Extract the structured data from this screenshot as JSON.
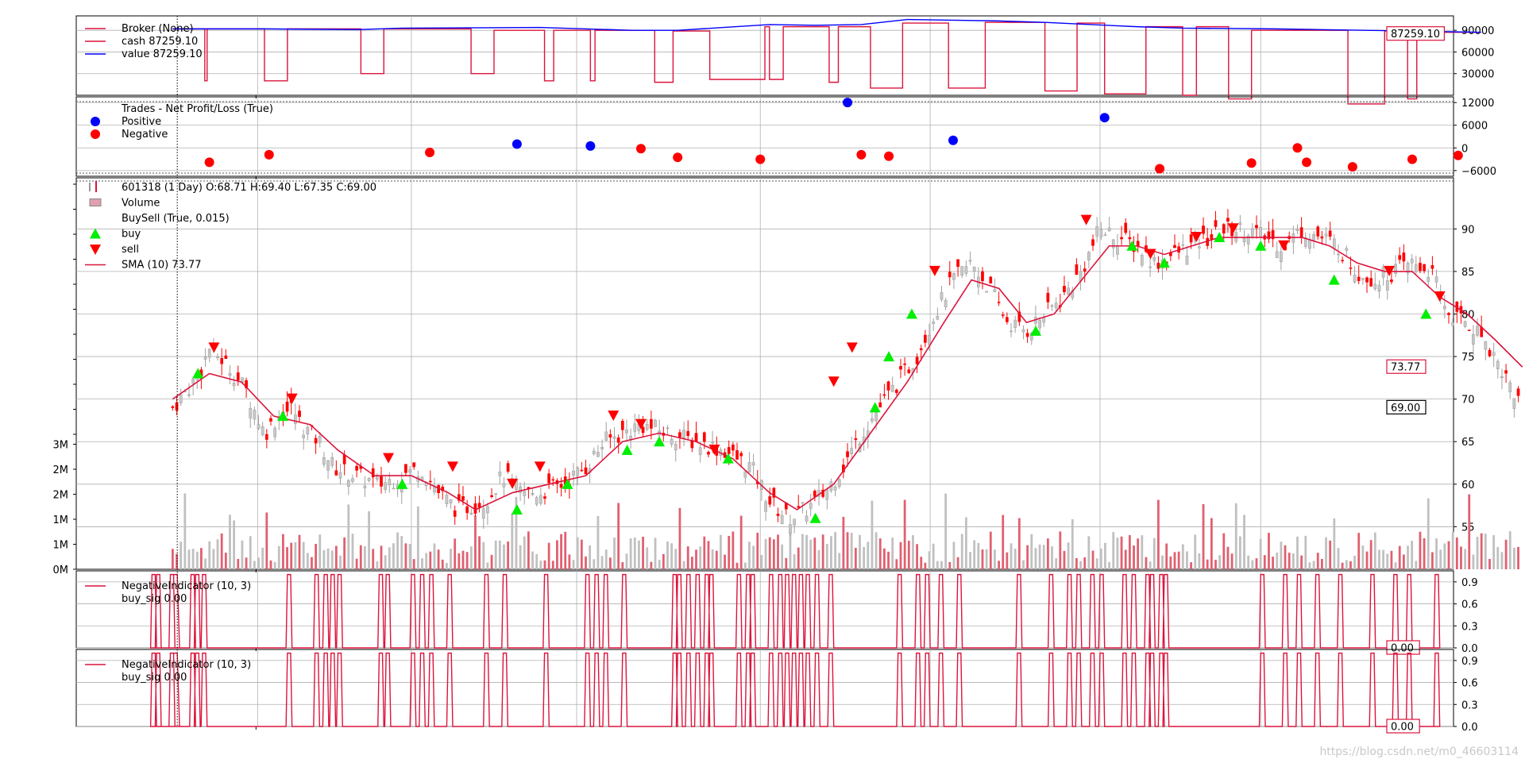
{
  "watermark": "https://blog.csdn.net/m0_46603114",
  "colors": {
    "red": "#dc143c",
    "blue": "#0000ff",
    "buy": "#00ee00",
    "sell": "#ff0000",
    "grid": "#b0b0b0",
    "up_bar": "#c8c8c8",
    "down_bar": "#ff0000",
    "vol_up": "#c0c0c0",
    "vol_down": "#e06070"
  },
  "chart_data": [
    {
      "panel": "broker",
      "type": "line",
      "legend": [
        {
          "label": "Broker (None)",
          "color": "#dc143c",
          "kind": "title"
        },
        {
          "label": "cash 87259.10",
          "color": "#dc143c",
          "kind": "line"
        },
        {
          "label": "value 87259.10",
          "color": "#0000ff",
          "kind": "line"
        }
      ],
      "y_ticks": [
        30000,
        60000,
        90000
      ],
      "ylim": [
        0,
        110000
      ],
      "last_label": "87259.10",
      "cash_segments": [
        [
          0,
          0.7,
          92000
        ],
        [
          0.7,
          0.75,
          20000
        ],
        [
          0.75,
          2.0,
          92000
        ],
        [
          2.0,
          2.5,
          20000
        ],
        [
          2.5,
          4.1,
          92000
        ],
        [
          4.1,
          4.6,
          30000
        ],
        [
          4.6,
          6.5,
          92000
        ],
        [
          6.5,
          7.0,
          30000
        ],
        [
          7.0,
          8.1,
          90000
        ],
        [
          8.1,
          8.3,
          20000
        ],
        [
          8.3,
          9.1,
          90000
        ],
        [
          9.1,
          9.2,
          20000
        ],
        [
          9.2,
          10.5,
          90000
        ],
        [
          10.5,
          10.9,
          18000
        ],
        [
          10.9,
          11.7,
          89000
        ],
        [
          11.7,
          12.9,
          22000
        ],
        [
          12.9,
          13.0,
          95000
        ],
        [
          13.0,
          13.3,
          22000
        ],
        [
          13.3,
          14.3,
          95000
        ],
        [
          14.3,
          14.5,
          18000
        ],
        [
          14.3,
          14.5,
          18000
        ],
        [
          14.5,
          15.2,
          95000
        ],
        [
          15.2,
          15.9,
          10000
        ],
        [
          15.9,
          16.9,
          100000
        ],
        [
          16.9,
          17.7,
          10000
        ],
        [
          17.7,
          19.0,
          101000
        ],
        [
          19.0,
          19.7,
          6000
        ],
        [
          19.7,
          20.3,
          100000
        ],
        [
          20.3,
          21.2,
          2000
        ],
        [
          21.2,
          22.0,
          95000
        ],
        [
          22.0,
          22.3,
          0
        ],
        [
          22.3,
          23.0,
          95000
        ],
        [
          23.0,
          23.5,
          -5000
        ],
        [
          23.5,
          25.6,
          90000
        ],
        [
          25.6,
          26.4,
          -12000
        ],
        [
          26.4,
          26.9,
          89000
        ],
        [
          26.9,
          27.1,
          -5000
        ],
        [
          27.1,
          28.5,
          87259
        ]
      ],
      "value_points": [
        [
          0,
          92000
        ],
        [
          2,
          92000
        ],
        [
          4,
          91000
        ],
        [
          5,
          93000
        ],
        [
          8,
          94000
        ],
        [
          10,
          90000
        ],
        [
          11,
          90000
        ],
        [
          12,
          94000
        ],
        [
          13,
          98000
        ],
        [
          14,
          97000
        ],
        [
          15,
          98000
        ],
        [
          16,
          105000
        ],
        [
          17,
          104000
        ],
        [
          18,
          103000
        ],
        [
          19,
          101000
        ],
        [
          20,
          98000
        ],
        [
          21,
          95000
        ],
        [
          22,
          93000
        ],
        [
          24,
          92000
        ],
        [
          25,
          91000
        ],
        [
          26,
          90000
        ],
        [
          27,
          89000
        ],
        [
          28.5,
          87259
        ]
      ]
    },
    {
      "panel": "trades",
      "type": "scatter",
      "legend": [
        {
          "label": "Trades - Net Profit/Loss (True)",
          "color": "#000000",
          "kind": "title"
        },
        {
          "label": "Positive",
          "color": "#0000ff",
          "kind": "dot"
        },
        {
          "label": "Negative",
          "color": "#ff0000",
          "kind": "dot"
        }
      ],
      "y_ticks": [
        -6000,
        0,
        6000,
        12000
      ],
      "ylim": [
        -7500,
        13500
      ],
      "positive": [
        [
          7.5,
          1000
        ],
        [
          9.1,
          500
        ],
        [
          14.7,
          12000
        ],
        [
          17.0,
          2000
        ],
        [
          20.3,
          8000
        ]
      ],
      "negative": [
        [
          0.8,
          -3800
        ],
        [
          2.1,
          -1800
        ],
        [
          5.6,
          -1200
        ],
        [
          10.2,
          -200
        ],
        [
          11.0,
          -2500
        ],
        [
          12.8,
          -3000
        ],
        [
          15.0,
          -1800
        ],
        [
          15.6,
          -2200
        ],
        [
          21.5,
          -5500
        ],
        [
          23.5,
          -4000
        ],
        [
          24.5,
          0
        ],
        [
          24.7,
          -3800
        ],
        [
          25.7,
          -5000
        ],
        [
          27.0,
          -3000
        ],
        [
          28.0,
          -2000
        ]
      ]
    },
    {
      "panel": "price",
      "type": "ohlc",
      "legend": [
        {
          "label": "601318 (1 Day) O:68.71 H:69.40 L:67.35 C:69.00",
          "color": "#dc143c",
          "kind": "ohlc"
        },
        {
          "label": "Volume",
          "color": "#e0a0b0",
          "kind": "box"
        },
        {
          "label": "BuySell (True, 0.015)",
          "color": "#000000",
          "kind": "title"
        },
        {
          "label": "buy",
          "color": "#00ee00",
          "kind": "up"
        },
        {
          "label": "sell",
          "color": "#ff0000",
          "kind": "down"
        },
        {
          "label": "SMA (10) 73.77",
          "color": "#dc143c",
          "kind": "line"
        }
      ],
      "y_ticks": [
        55,
        60,
        65,
        70,
        75,
        80,
        85,
        90
      ],
      "ylim": [
        50,
        96
      ],
      "vol_ticks": [
        "0M",
        "1M",
        "1M",
        "2M",
        "2M",
        "3M"
      ],
      "last_close_label": "69.00",
      "sma_label": "73.77",
      "close_path": [
        [
          0,
          69
        ],
        [
          0.6,
          73
        ],
        [
          0.8,
          76
        ],
        [
          1.2,
          74
        ],
        [
          1.6,
          71
        ],
        [
          2.0,
          66
        ],
        [
          2.3,
          68
        ],
        [
          2.6,
          69
        ],
        [
          2.8,
          67
        ],
        [
          3.2,
          65
        ],
        [
          3.5,
          62
        ],
        [
          4.0,
          61
        ],
        [
          4.5,
          60
        ],
        [
          5.0,
          61
        ],
        [
          5.4,
          62
        ],
        [
          5.8,
          59
        ],
        [
          6.2,
          57
        ],
        [
          6.8,
          58
        ],
        [
          7.2,
          61
        ],
        [
          7.6,
          59
        ],
        [
          8.0,
          59
        ],
        [
          8.5,
          60
        ],
        [
          9.0,
          62
        ],
        [
          9.4,
          65
        ],
        [
          9.8,
          66
        ],
        [
          10.2,
          67
        ],
        [
          10.8,
          66
        ],
        [
          11.4,
          65
        ],
        [
          12.0,
          64
        ],
        [
          12.6,
          62
        ],
        [
          13.0,
          58
        ],
        [
          13.4,
          56
        ],
        [
          13.8,
          57
        ],
        [
          14.2,
          59
        ],
        [
          14.6,
          62
        ],
        [
          15.0,
          66
        ],
        [
          15.4,
          69
        ],
        [
          15.8,
          72
        ],
        [
          16.2,
          75
        ],
        [
          16.6,
          80
        ],
        [
          17.0,
          84
        ],
        [
          17.4,
          86
        ],
        [
          17.8,
          83
        ],
        [
          18.2,
          79
        ],
        [
          18.6,
          78
        ],
        [
          19.0,
          80
        ],
        [
          19.4,
          82
        ],
        [
          19.8,
          85
        ],
        [
          20.2,
          90
        ],
        [
          20.6,
          89
        ],
        [
          21.0,
          88
        ],
        [
          21.4,
          86
        ],
        [
          21.8,
          87
        ],
        [
          22.2,
          88
        ],
        [
          22.6,
          89
        ],
        [
          23.0,
          90
        ],
        [
          23.4,
          90
        ],
        [
          23.8,
          89
        ],
        [
          24.2,
          88
        ],
        [
          24.6,
          90
        ],
        [
          25.0,
          89
        ],
        [
          25.4,
          88
        ],
        [
          25.8,
          85
        ],
        [
          26.2,
          84
        ],
        [
          26.6,
          85
        ],
        [
          27.0,
          86
        ],
        [
          27.4,
          85
        ],
        [
          27.8,
          80
        ],
        [
          28.2,
          79
        ],
        [
          28.6,
          77
        ],
        [
          29.0,
          73
        ],
        [
          29.4,
          69
        ]
      ],
      "sma_path": [
        [
          0,
          70
        ],
        [
          0.8,
          73
        ],
        [
          1.5,
          72
        ],
        [
          2.2,
          68
        ],
        [
          3.0,
          67
        ],
        [
          3.6,
          64
        ],
        [
          4.4,
          61
        ],
        [
          5.2,
          61
        ],
        [
          6.0,
          59
        ],
        [
          6.6,
          57
        ],
        [
          7.4,
          59
        ],
        [
          8.2,
          60
        ],
        [
          9.0,
          61
        ],
        [
          9.8,
          65
        ],
        [
          10.6,
          66
        ],
        [
          11.4,
          65
        ],
        [
          12.2,
          63
        ],
        [
          13.0,
          59
        ],
        [
          13.6,
          57
        ],
        [
          14.4,
          60
        ],
        [
          15.2,
          66
        ],
        [
          16.0,
          72
        ],
        [
          16.8,
          79
        ],
        [
          17.4,
          84
        ],
        [
          18.0,
          83
        ],
        [
          18.6,
          79
        ],
        [
          19.2,
          80
        ],
        [
          19.8,
          84
        ],
        [
          20.4,
          88
        ],
        [
          21.0,
          88
        ],
        [
          21.6,
          87
        ],
        [
          22.2,
          88
        ],
        [
          22.8,
          89
        ],
        [
          23.4,
          89
        ],
        [
          24.0,
          89
        ],
        [
          24.6,
          89
        ],
        [
          25.2,
          88
        ],
        [
          25.8,
          86
        ],
        [
          26.4,
          85
        ],
        [
          27.0,
          85
        ],
        [
          27.6,
          82
        ],
        [
          28.2,
          80
        ],
        [
          28.8,
          77
        ],
        [
          29.4,
          73.77
        ]
      ],
      "buy_markers": [
        [
          0.55,
          73
        ],
        [
          2.4,
          68
        ],
        [
          5.0,
          60
        ],
        [
          7.5,
          57
        ],
        [
          8.6,
          60
        ],
        [
          9.9,
          64
        ],
        [
          10.6,
          65
        ],
        [
          12.1,
          63
        ],
        [
          14.0,
          56
        ],
        [
          15.3,
          69
        ],
        [
          15.6,
          75
        ],
        [
          16.1,
          80
        ],
        [
          18.8,
          78
        ],
        [
          20.9,
          88
        ],
        [
          21.6,
          86
        ],
        [
          22.8,
          89
        ],
        [
          23.7,
          88
        ],
        [
          25.3,
          84
        ],
        [
          27.3,
          80
        ]
      ],
      "sell_markers": [
        [
          0.9,
          76
        ],
        [
          2.6,
          70
        ],
        [
          4.7,
          63
        ],
        [
          6.1,
          62
        ],
        [
          7.4,
          60
        ],
        [
          8.0,
          62
        ],
        [
          9.6,
          68
        ],
        [
          10.2,
          67
        ],
        [
          11.8,
          64
        ],
        [
          14.4,
          72
        ],
        [
          14.8,
          76
        ],
        [
          16.6,
          85
        ],
        [
          19.9,
          91
        ],
        [
          21.3,
          87
        ],
        [
          22.3,
          89
        ],
        [
          23.1,
          90
        ],
        [
          24.2,
          88
        ],
        [
          26.5,
          85
        ],
        [
          27.6,
          82
        ]
      ]
    },
    {
      "panel": "indicator_1",
      "type": "line",
      "legend": [
        {
          "label": "NegativeIndicator (10, 3)",
          "color": "#dc143c",
          "kind": "title"
        },
        {
          "label": "buy_sig 0.00",
          "color": "#dc143c",
          "kind": "text"
        }
      ],
      "y_ticks": [
        "0.0",
        "0.3",
        "0.6",
        "0.9"
      ],
      "ylim": [
        0,
        1.05
      ],
      "last_label": "0.00"
    },
    {
      "panel": "indicator_2",
      "type": "line",
      "legend": [
        {
          "label": "NegativeIndicator (10, 3)",
          "color": "#dc143c",
          "kind": "title"
        },
        {
          "label": "buy_sig 0.00",
          "color": "#dc143c",
          "kind": "text"
        }
      ],
      "y_ticks": [
        "0.0",
        "0.3",
        "0.6",
        "0.9"
      ],
      "ylim": [
        0,
        1.05
      ],
      "last_label": "0.00"
    }
  ]
}
